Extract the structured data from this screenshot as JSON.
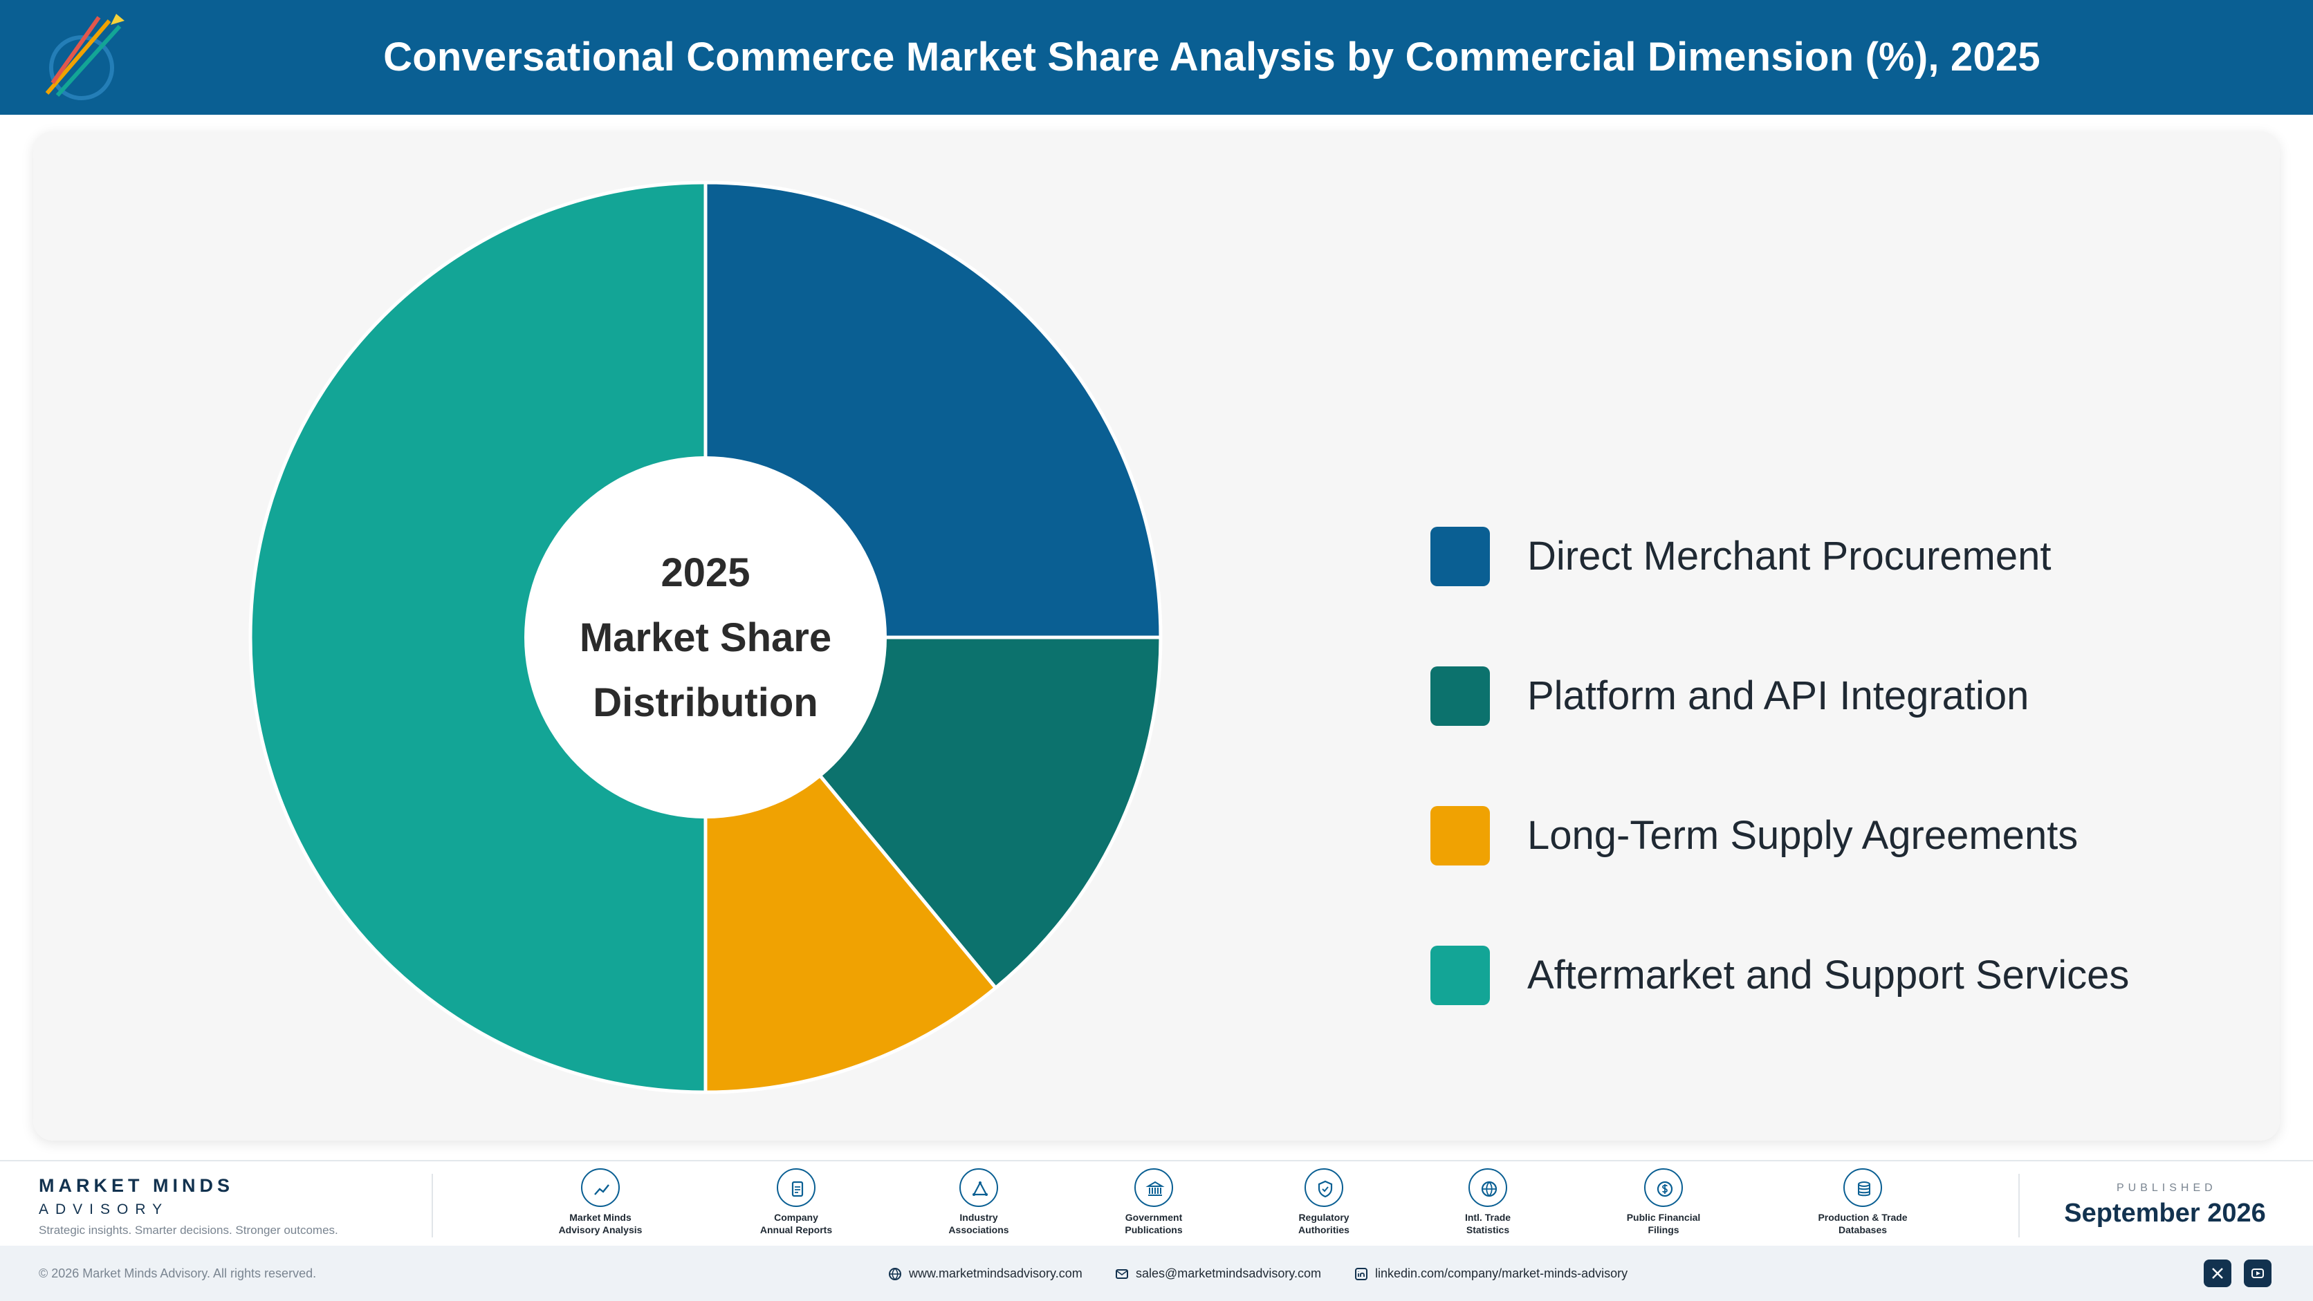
{
  "header": {
    "title": "Conversational Commerce Market Share Analysis by Commercial Dimension (%), 2025",
    "logo_icon": "rocket-growth-logo-icon"
  },
  "chart_data": {
    "type": "pie",
    "donut": true,
    "center_label": [
      "2025",
      "Market Share",
      "Distribution"
    ],
    "categories": [
      "Direct Merchant Procurement",
      "Platform and API Integration",
      "Long-Term Supply Agreements",
      "Aftermarket and Support Services"
    ],
    "values": [
      25,
      14,
      11,
      50
    ],
    "colors": [
      "#0a5f93",
      "#0c726d",
      "#f0a202",
      "#13a596"
    ],
    "start_angle": "12 o'clock",
    "direction": "clockwise",
    "legend": "right",
    "data_labels": false
  },
  "footer": {
    "brand": {
      "name": "MARKET MINDS",
      "sub": "ADVISORY",
      "tagline": "Strategic insights. Smarter decisions. Stronger outcomes."
    },
    "sources": [
      {
        "label": "Market Minds\nAdvisory Analysis",
        "icon": "trend-line-icon"
      },
      {
        "label": "Company\nAnnual Reports",
        "icon": "document-icon"
      },
      {
        "label": "Industry\nAssociations",
        "icon": "network-icon"
      },
      {
        "label": "Government\nPublications",
        "icon": "government-building-icon"
      },
      {
        "label": "Regulatory\nAuthorities",
        "icon": "shield-check-icon"
      },
      {
        "label": "Intl. Trade\nStatistics",
        "icon": "globe-icon"
      },
      {
        "label": "Public Financial\nFilings",
        "icon": "dollar-coin-icon"
      },
      {
        "label": "Production & Trade\nDatabases",
        "icon": "database-icon"
      }
    ],
    "published_label": "PUBLISHED",
    "published_date": "September 2026"
  },
  "bottom_bar": {
    "copyright": "© 2026 Market Minds Advisory. All rights reserved.",
    "website": "www.marketmindsadvisory.com",
    "email": "sales@marketmindsadvisory.com",
    "linkedin": "linkedin.com/company/market-minds-advisory",
    "social_icons": [
      "x-icon",
      "youtube-icon"
    ]
  }
}
